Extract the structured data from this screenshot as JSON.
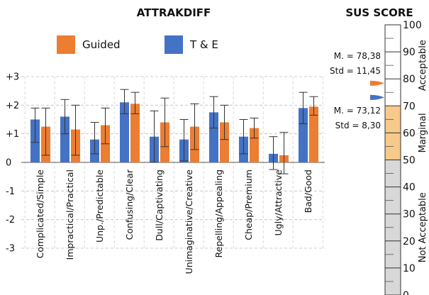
{
  "chart_data": [
    {
      "type": "bar",
      "title": "ATTRAKDIFF",
      "ylim": [
        -3,
        3
      ],
      "yticks": [
        "-3",
        "-2",
        "-1",
        "0",
        "+1",
        "+2",
        "+3"
      ],
      "grid": true,
      "legend": "top",
      "categories": [
        "Complicated/Simple",
        "Impractical/Practical",
        "Unp./Predictable",
        "Confusing/Clear",
        "Dull/Captivating",
        "Unimaginative/Creative",
        "Repelling/Appealing",
        "Cheap/Premium",
        "Ugly/Attractive",
        "Bad/Good"
      ],
      "series": [
        {
          "name": "T & E",
          "color": "#4472c4",
          "values": [
            1.5,
            1.6,
            0.8,
            2.1,
            0.9,
            0.8,
            1.75,
            0.9,
            0.3,
            1.9
          ],
          "error_low": [
            0.7,
            1.0,
            0.3,
            1.7,
            0.0,
            0.05,
            1.2,
            0.3,
            -0.25,
            1.35
          ],
          "error_high": [
            1.9,
            2.2,
            1.4,
            2.55,
            1.8,
            1.5,
            2.3,
            1.5,
            0.9,
            2.45
          ]
        },
        {
          "name": "Guided",
          "color": "#ed7d31",
          "values": [
            1.25,
            1.15,
            1.3,
            2.05,
            1.4,
            1.25,
            1.4,
            1.2,
            0.25,
            1.95
          ],
          "error_low": [
            0.25,
            0.25,
            0.65,
            1.7,
            0.55,
            0.45,
            0.8,
            0.85,
            -0.4,
            1.65
          ],
          "error_high": [
            1.9,
            2.0,
            1.9,
            2.45,
            2.25,
            2.05,
            2.0,
            1.55,
            1.05,
            2.3
          ]
        }
      ]
    },
    {
      "type": "gauge",
      "title": "SUS SCORE",
      "range": [
        0,
        100
      ],
      "ticks": [
        "0",
        "10",
        "20",
        "30",
        "40",
        "50",
        "60",
        "70",
        "80",
        "90",
        "100"
      ],
      "zones": [
        {
          "label": "Not Acceptable",
          "from": 0,
          "to": 50,
          "color": "#d8d8d8"
        },
        {
          "label": "Marginal",
          "from": 50,
          "to": 70,
          "color": "#f7c98a"
        },
        {
          "label": "Acceptable",
          "from": 70,
          "to": 100,
          "color": "#ffffff"
        }
      ],
      "markers": [
        {
          "series": "Guided",
          "value": 78.38,
          "color": "#ed7d31",
          "mean_text": "M. = 78,38",
          "std_text": "Std = 11,45"
        },
        {
          "series": "T & E",
          "value": 73.12,
          "color": "#4472c4",
          "mean_text": "M. = 73,12",
          "std_text": "Std = 8,30"
        }
      ]
    }
  ]
}
